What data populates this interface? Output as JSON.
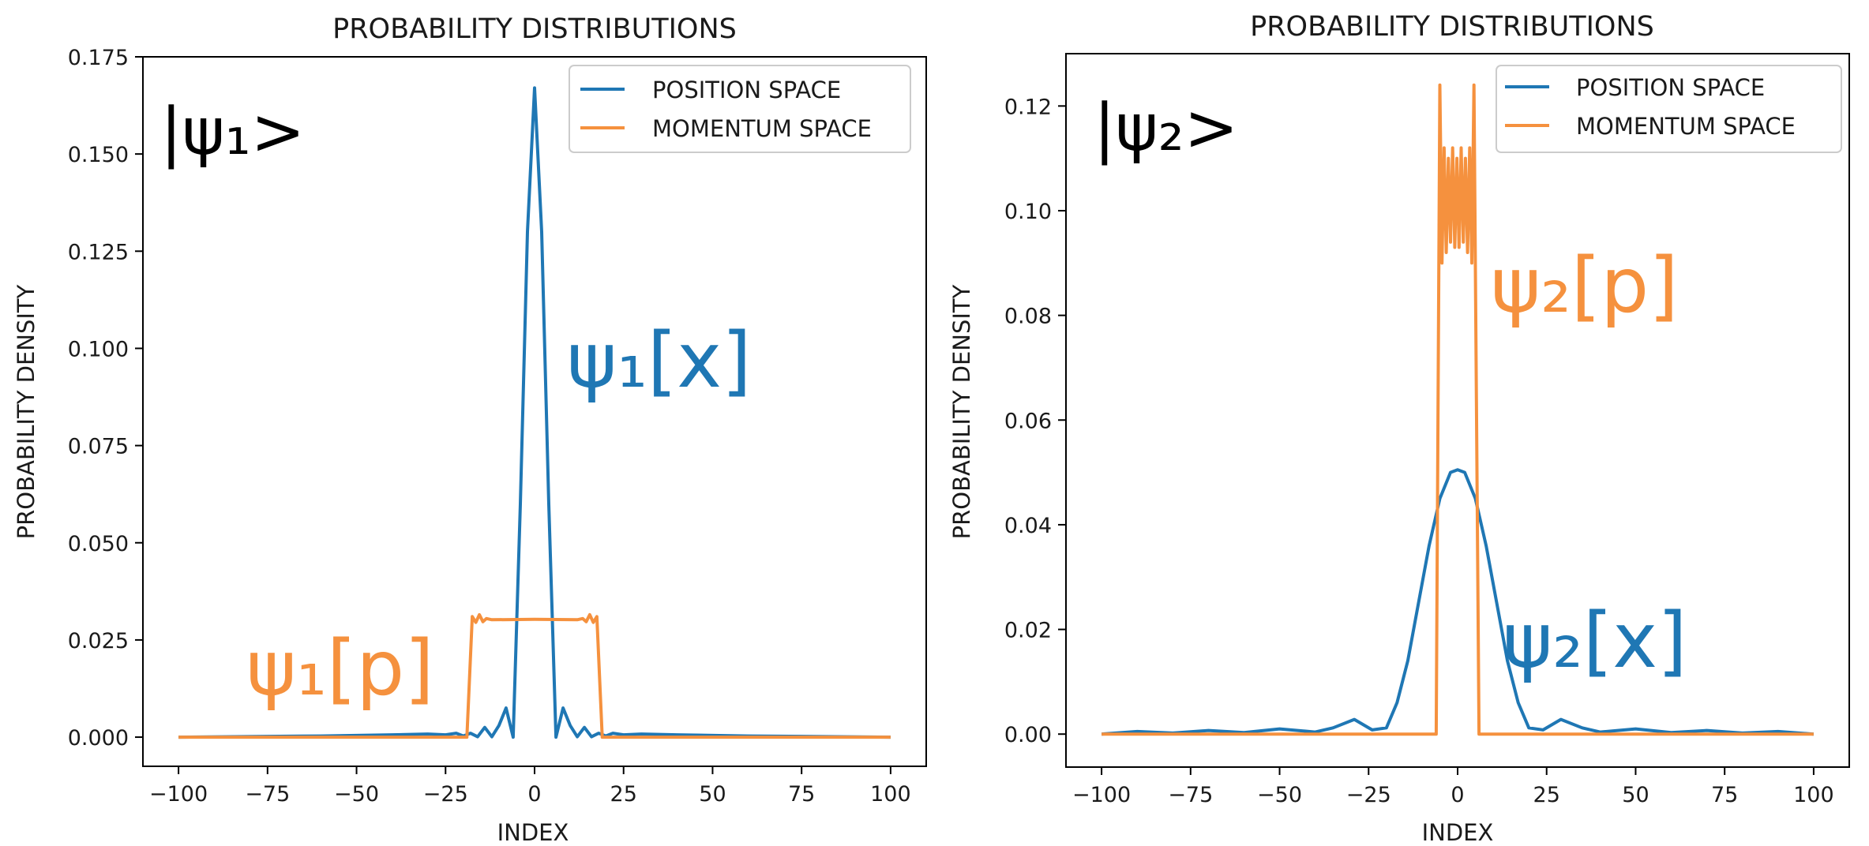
{
  "colors": {
    "position": "#1f77b4",
    "momentum": "#f5913e",
    "axis": "#000000"
  },
  "chart_data": [
    {
      "type": "line",
      "title": "PROBABILITY DISTRIBUTIONS",
      "xlabel": "INDEX",
      "ylabel": "PROBABILITY DENSITY",
      "xlim": [
        -110,
        110
      ],
      "ylim": [
        -0.0075,
        0.175
      ],
      "x_ticks": [
        -100,
        -75,
        -50,
        -25,
        0,
        25,
        50,
        75,
        100
      ],
      "x_tick_labels": [
        "−100",
        "−75",
        "−50",
        "−25",
        "0",
        "25",
        "50",
        "75",
        "100"
      ],
      "y_ticks": [
        0.0,
        0.025,
        0.05,
        0.075,
        0.1,
        0.125,
        0.15,
        0.175
      ],
      "y_tick_labels": [
        "0.000",
        "0.025",
        "0.050",
        "0.075",
        "0.100",
        "0.125",
        "0.150",
        "0.175"
      ],
      "legend": {
        "position": "top-right",
        "entries": [
          "POSITION SPACE",
          "MOMENTUM SPACE"
        ]
      },
      "state_label": "|ψ₁>",
      "annotations": [
        {
          "text": "ψ₁[x]",
          "series": "POSITION SPACE"
        },
        {
          "text": "ψ₁[p]",
          "series": "MOMENTUM SPACE"
        }
      ],
      "series": [
        {
          "name": "POSITION SPACE",
          "x": [
            -100,
            -60,
            -40,
            -30,
            -25,
            -22,
            -20,
            -18,
            -16,
            -14,
            -12,
            -10,
            -8,
            -6,
            -4,
            -2,
            0,
            2,
            4,
            6,
            8,
            10,
            12,
            14,
            16,
            18,
            20,
            22,
            25,
            30,
            40,
            60,
            100
          ],
          "y": [
            0.0,
            0.0003,
            0.0006,
            0.0008,
            0.0006,
            0.001,
            0.0003,
            0.001,
            0.0001,
            0.0025,
            0.0001,
            0.003,
            0.0075,
            0.0,
            0.06,
            0.13,
            0.167,
            0.13,
            0.06,
            0.0,
            0.0075,
            0.003,
            0.0001,
            0.0025,
            0.0001,
            0.001,
            0.0003,
            0.001,
            0.0006,
            0.0008,
            0.0006,
            0.0003,
            0.0
          ]
        },
        {
          "name": "MOMENTUM SPACE",
          "x": [
            -100,
            -19,
            -17.5,
            -16.5,
            -15.5,
            -14.5,
            -13.5,
            -12,
            0,
            12,
            13.5,
            14.5,
            15.5,
            16.5,
            17.5,
            19,
            100
          ],
          "y": [
            0.0,
            0.0,
            0.031,
            0.0295,
            0.0315,
            0.0297,
            0.0305,
            0.0302,
            0.0303,
            0.0302,
            0.0305,
            0.0297,
            0.0315,
            0.0295,
            0.031,
            0.0,
            0.0
          ]
        }
      ]
    },
    {
      "type": "line",
      "title": "PROBABILITY DISTRIBUTIONS",
      "xlabel": "INDEX",
      "ylabel": "PROBABILITY DENSITY",
      "xlim": [
        -110,
        110
      ],
      "ylim": [
        -0.0063,
        0.13
      ],
      "x_ticks": [
        -100,
        -75,
        -50,
        -25,
        0,
        25,
        50,
        75,
        100
      ],
      "x_tick_labels": [
        "−100",
        "−75",
        "−50",
        "−25",
        "0",
        "25",
        "50",
        "75",
        "100"
      ],
      "y_ticks": [
        0.0,
        0.02,
        0.04,
        0.06,
        0.08,
        0.1,
        0.12
      ],
      "y_tick_labels": [
        "0.00",
        "0.02",
        "0.04",
        "0.06",
        "0.08",
        "0.10",
        "0.12"
      ],
      "legend": {
        "position": "top-right",
        "entries": [
          "POSITION SPACE",
          "MOMENTUM SPACE"
        ]
      },
      "state_label": "|ψ₂>",
      "annotations": [
        {
          "text": "ψ₂[p]",
          "series": "MOMENTUM SPACE"
        },
        {
          "text": "ψ₂[x]",
          "series": "POSITION SPACE"
        }
      ],
      "series": [
        {
          "name": "POSITION SPACE",
          "x": [
            -100,
            -90,
            -80,
            -70,
            -60,
            -50,
            -40,
            -35,
            -29,
            -24,
            -20,
            -17,
            -14,
            -11,
            -8,
            -5,
            -2,
            0,
            2,
            5,
            8,
            11,
            14,
            17,
            20,
            24,
            29,
            35,
            40,
            50,
            60,
            70,
            80,
            90,
            100
          ],
          "y": [
            0.0,
            0.0005,
            0.0002,
            0.0007,
            0.0003,
            0.001,
            0.0004,
            0.0012,
            0.0028,
            0.0008,
            0.0012,
            0.006,
            0.014,
            0.025,
            0.036,
            0.045,
            0.05,
            0.0505,
            0.05,
            0.045,
            0.036,
            0.025,
            0.014,
            0.006,
            0.0012,
            0.0008,
            0.0028,
            0.0012,
            0.0004,
            0.001,
            0.0003,
            0.0007,
            0.0002,
            0.0005,
            0.0
          ]
        },
        {
          "name": "MOMENTUM SPACE",
          "x": [
            -100,
            -6,
            -5,
            -4.4,
            -3.8,
            -3.2,
            -2.6,
            -2.0,
            -1.4,
            -0.8,
            -0.2,
            0.4,
            1.0,
            1.6,
            2.2,
            2.8,
            3.4,
            4.0,
            4.6,
            6,
            100
          ],
          "y": [
            0.0,
            0.0,
            0.124,
            0.09,
            0.112,
            0.092,
            0.11,
            0.094,
            0.112,
            0.093,
            0.11,
            0.093,
            0.112,
            0.094,
            0.11,
            0.092,
            0.112,
            0.09,
            0.124,
            0.0,
            0.0
          ]
        }
      ]
    }
  ]
}
